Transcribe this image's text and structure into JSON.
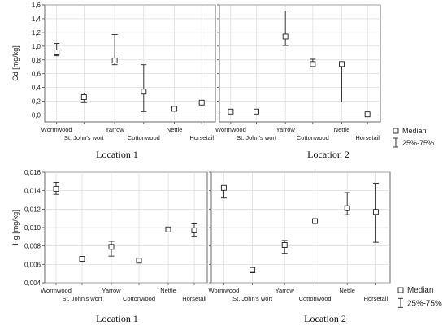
{
  "captions": {
    "top_left": "Location 1",
    "top_right": "Location 2",
    "bottom_left": "Location 1",
    "bottom_right": "Location 2"
  },
  "legend": {
    "median_label": "Median",
    "range_label": "25%-75%"
  },
  "chart_data": [
    {
      "type": "box",
      "row": "top",
      "location": "Location 1",
      "ylabel": "Cd [mg/kg]",
      "ylim": [
        -0.1,
        1.6
      ],
      "yticks": [
        0.0,
        0.2,
        0.4,
        0.6,
        0.8,
        1.0,
        1.2,
        1.4,
        1.6
      ],
      "ytick_labels": [
        "0,0",
        "0,2",
        "0,4",
        "0,6",
        "0,8",
        "1,0",
        "1,2",
        "1,4",
        "1,6"
      ],
      "categories": [
        "Wormwood",
        "St. John's wort",
        "Yarrow",
        "Cottonwood",
        "Nettle",
        "Horsetail"
      ],
      "median": [
        0.91,
        0.26,
        0.79,
        0.34,
        0.09,
        0.18
      ],
      "q25": [
        0.86,
        0.18,
        0.73,
        0.05,
        0.07,
        0.17
      ],
      "q75": [
        1.04,
        0.32,
        1.17,
        0.73,
        0.11,
        0.19
      ],
      "grid": true
    },
    {
      "type": "box",
      "row": "top",
      "location": "Location 2",
      "ylim": [
        -0.1,
        1.6
      ],
      "yticks": [
        0.0,
        0.2,
        0.4,
        0.6,
        0.8,
        1.0,
        1.2,
        1.4,
        1.6
      ],
      "categories": [
        "Wormwood",
        "St. John's wort",
        "Yarrow",
        "Cottonwood",
        "Nettle",
        "Horsetail"
      ],
      "median": [
        0.05,
        0.05,
        1.14,
        0.74,
        0.74,
        0.01
      ],
      "q25": [
        0.03,
        0.03,
        1.01,
        0.7,
        0.19,
        0.0
      ],
      "q75": [
        0.07,
        0.07,
        1.51,
        0.81,
        0.76,
        0.02
      ],
      "grid": true
    },
    {
      "type": "box",
      "row": "bottom",
      "location": "Location 1",
      "ylabel": "Hg [mg/kg]",
      "ylim": [
        0.004,
        0.016
      ],
      "yticks": [
        0.004,
        0.006,
        0.008,
        0.01,
        0.012,
        0.014,
        0.016
      ],
      "ytick_labels": [
        "0,004",
        "0,006",
        "0,008",
        "0,010",
        "0,012",
        "0,014",
        "0,016"
      ],
      "categories": [
        "Wormwood",
        "St. John's wort",
        "Yarrow",
        "Cottonwood",
        "Nettle",
        "Horsetail"
      ],
      "median": [
        0.0142,
        0.0066,
        0.0079,
        0.0064,
        0.0098,
        0.0097
      ],
      "q25": [
        0.0136,
        0.0065,
        0.0069,
        0.0063,
        0.0097,
        0.009
      ],
      "q75": [
        0.0149,
        0.0067,
        0.0085,
        0.0065,
        0.0099,
        0.0104
      ],
      "grid": true
    },
    {
      "type": "box",
      "row": "bottom",
      "location": "Location 2",
      "ylim": [
        0.004,
        0.016
      ],
      "yticks": [
        0.004,
        0.006,
        0.008,
        0.01,
        0.012,
        0.014,
        0.016
      ],
      "categories": [
        "Wormwood",
        "St. John's wort",
        "Yarrow",
        "Cottonwood",
        "Nettle",
        "Horsetail"
      ],
      "median": [
        0.0143,
        0.0054,
        0.0081,
        0.0107,
        0.0121,
        0.0117
      ],
      "q25": [
        0.0132,
        0.0051,
        0.0072,
        0.0106,
        0.0114,
        0.0084
      ],
      "q75": [
        0.0144,
        0.0056,
        0.0086,
        0.0108,
        0.0138,
        0.0148
      ],
      "grid": true
    }
  ]
}
